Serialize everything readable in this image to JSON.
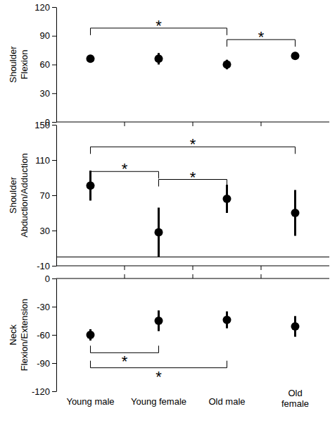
{
  "chart_data": [
    {
      "type": "scatter",
      "y_label": "Shoulder Flexion",
      "categories": [
        "Young male",
        "Young female",
        "Old male",
        "Old female"
      ],
      "values": [
        66,
        66,
        60,
        69
      ],
      "errors": [
        2,
        6,
        5,
        3
      ],
      "color": "#000000",
      "marker": "circle",
      "ylim": [
        0,
        120
      ],
      "yticks": [
        0,
        30,
        60,
        90,
        120
      ],
      "tick_labels": "y",
      "significance": [
        {
          "from": "Young male",
          "to": "Old male",
          "y": 98,
          "label": "*"
        },
        {
          "from": "Old male",
          "to": "Old female",
          "y": 86,
          "label": "*"
        }
      ]
    },
    {
      "type": "scatter",
      "y_label": "Shoulder Abduction/Adduction",
      "categories": [
        "Young male",
        "Young female",
        "Old male",
        "Old female"
      ],
      "values": [
        81,
        28,
        66,
        50
      ],
      "errors": [
        17,
        28,
        16,
        26
      ],
      "color": "#000000",
      "marker": "circle",
      "ylim": [
        -10,
        150
      ],
      "yticks": [
        -10,
        30,
        70,
        110,
        150
      ],
      "tick_labels": "y",
      "significance": [
        {
          "from": "Young male",
          "to": "Old female",
          "y": 125,
          "label": "*"
        },
        {
          "from": "Young male",
          "to": "Young female",
          "y": 97,
          "label": "*"
        },
        {
          "from": "Young female",
          "to": "Old male",
          "y": 88,
          "label": "*"
        }
      ]
    },
    {
      "type": "scatter",
      "y_label": "Neck Flexion/Extension",
      "categories": [
        "Young male",
        "Young female",
        "Old male",
        "Old female"
      ],
      "values": [
        -60,
        -45,
        -44,
        -51
      ],
      "errors": [
        6,
        11,
        9,
        11
      ],
      "color": "#000000",
      "marker": "circle",
      "ylim": [
        -120,
        0
      ],
      "yticks": [
        -120,
        -90,
        -60,
        -30,
        0
      ],
      "tick_labels": true,
      "significance": [
        {
          "from": "Young male",
          "to": "Young female",
          "y": -79,
          "label": "*"
        },
        {
          "from": "Young male",
          "to": "Old male",
          "y": -95,
          "label": "*"
        }
      ]
    }
  ]
}
